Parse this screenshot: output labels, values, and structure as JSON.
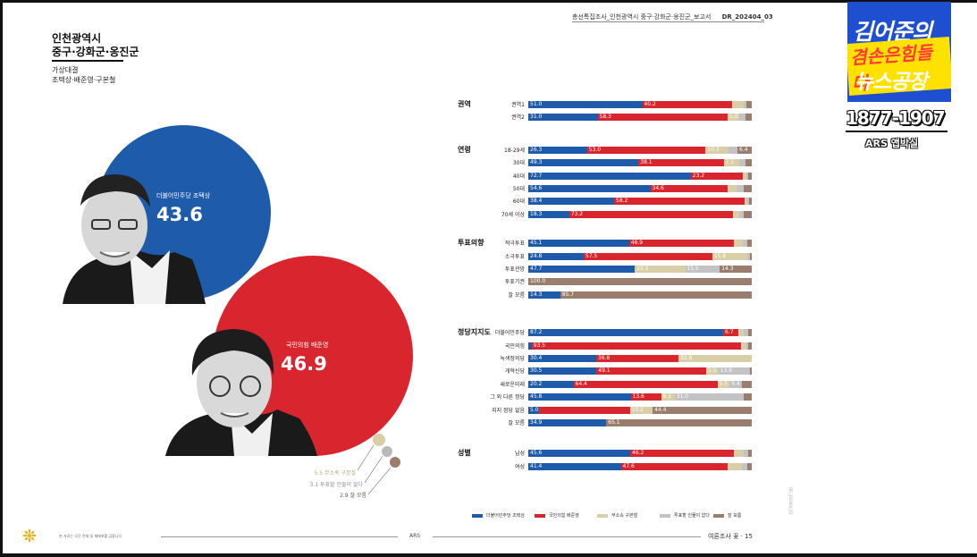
{
  "document": {
    "header": "총선특집조사_인천광역시 중구·강화군·옹진군_보고서",
    "code": "DR_202404_03",
    "footer_note": "본 자료는 무단 전재 및 재배포를 금합니다",
    "footer_center": "ARS",
    "footer_right": "여론조사 꽃 · 15"
  },
  "region": {
    "line1": "인천광역시",
    "line2": "중구·강화군·옹진군",
    "matchup_label": "가상대결",
    "matchup": "조택상·배준영·구본철"
  },
  "bubbles": {
    "candidate_a": {
      "label": "더불어민주당 조택상",
      "value": "43.6",
      "color": "#1f5bab"
    },
    "candidate_b": {
      "label": "국민의힘 배준영",
      "value": "46.9",
      "color": "#d9262e"
    },
    "minor": [
      {
        "label": "5.5 무소속 구본철",
        "color": "#d8cfa7"
      },
      {
        "label": "3.1 투표할 인물이 없다",
        "color": "#b9b9bd"
      },
      {
        "label": "2.9 잘 모름",
        "color": "#9b7d6e"
      }
    ]
  },
  "chart_data": {
    "type": "bar",
    "orientation": "horizontal-stacked-100",
    "series": [
      {
        "name": "더불어민주당 조택상",
        "color": "#1f5bab"
      },
      {
        "name": "국민의힘 배준영",
        "color": "#d9262e"
      },
      {
        "name": "무소속 구본철",
        "color": "#d8cfa7"
      },
      {
        "name": "투표할 인물이 없다",
        "color": "#c3c3c6"
      },
      {
        "name": "잘 모름",
        "color": "#9b7d6e"
      }
    ],
    "groups": [
      {
        "name": "권역",
        "rows": [
          {
            "label": "권역1",
            "values": [
              51.0,
              40.2,
              5.0,
              1.5,
              2.3
            ]
          },
          {
            "label": "권역2",
            "values": [
              31.0,
              58.3,
              5.0,
              3.0,
              2.7
            ]
          }
        ]
      },
      {
        "name": "연령",
        "rows": [
          {
            "label": "18-29세",
            "values": [
              26.3,
              53.0,
              10.3,
              4.0,
              6.4
            ]
          },
          {
            "label": "30대",
            "values": [
              49.3,
              38.1,
              7.1,
              2.5,
              3.0
            ]
          },
          {
            "label": "40대",
            "values": [
              72.7,
              23.2,
              1.5,
              1.0,
              1.6
            ]
          },
          {
            "label": "50대",
            "values": [
              54.6,
              34.6,
              4.5,
              2.5,
              3.8
            ]
          },
          {
            "label": "60대",
            "values": [
              38.4,
              58.2,
              1.0,
              1.0,
              1.4
            ]
          },
          {
            "label": "70세 이상",
            "values": [
              18.3,
              73.2,
              3.0,
              2.0,
              3.5
            ]
          }
        ]
      },
      {
        "name": "투표의향",
        "rows": [
          {
            "label": "적극투표",
            "values": [
              45.1,
              46.9,
              4.0,
              2.0,
              2.0
            ]
          },
          {
            "label": "소극투표",
            "values": [
              24.8,
              57.5,
              15.8,
              1.0,
              0.9
            ]
          },
          {
            "label": "투표관망",
            "values": [
              47.7,
              0.0,
              22.5,
              15.5,
              14.3
            ]
          },
          {
            "label": "투표기권",
            "values": [
              0,
              0,
              0,
              0,
              100.0
            ]
          },
          {
            "label": "잘 모름",
            "values": [
              14.3,
              0,
              0,
              0,
              85.7
            ]
          }
        ]
      },
      {
        "name": "정당지지도",
        "rows": [
          {
            "label": "더불어민주당",
            "values": [
              87.2,
              6.7,
              2.5,
              1.8,
              1.8
            ]
          },
          {
            "label": "국민의힘",
            "values": [
              1.5,
              93.5,
              2.5,
              1.0,
              1.5
            ]
          },
          {
            "label": "녹색정의당",
            "values": [
              30.4,
              36.8,
              32.8,
              0,
              0
            ]
          },
          {
            "label": "개혁신당",
            "values": [
              30.5,
              49.1,
              5.5,
              13.9,
              1.0
            ]
          },
          {
            "label": "새로운미래",
            "values": [
              20.2,
              64.4,
              5.5,
              5.4,
              4.5
            ]
          },
          {
            "label": "그 외 다른 정당",
            "values": [
              45.8,
              13.6,
              6.1,
              31.0,
              3.5
            ]
          },
          {
            "label": "지지 정당 없음",
            "values": [
              5.0,
              40.5,
              10.2,
              0,
              44.4
            ]
          },
          {
            "label": "잘 모름",
            "values": [
              34.9,
              0,
              0,
              0,
              65.1
            ]
          }
        ]
      },
      {
        "name": "성별",
        "rows": [
          {
            "label": "남성",
            "values": [
              45.6,
              46.2,
              4.5,
              2.0,
              1.7
            ]
          },
          {
            "label": "여성",
            "values": [
              41.4,
              47.6,
              6.5,
              2.5,
              2.0
            ]
          }
        ]
      }
    ],
    "value_labels": {
      "권역1": [
        "51.0",
        "40.2",
        "",
        "",
        ""
      ],
      "권역2": [
        "31.0",
        "58.3",
        "5.0",
        "",
        ""
      ],
      "18-29세": [
        "26.3",
        "53.0",
        "10.3",
        "",
        "6.4"
      ],
      "30대": [
        "49.3",
        "38.1",
        "7.1",
        "",
        ""
      ],
      "40대": [
        "72.7",
        "23.2",
        "",
        "",
        ""
      ],
      "50대": [
        "54.6",
        "34.6",
        "",
        "",
        ""
      ],
      "60대": [
        "38.4",
        "58.2",
        "",
        "",
        ""
      ],
      "70세 이상": [
        "18.3",
        "73.2",
        "",
        "",
        ""
      ],
      "적극투표": [
        "45.1",
        "46.9",
        "",
        "",
        ""
      ],
      "소극투표": [
        "24.8",
        "57.5",
        "15.8",
        "",
        ""
      ],
      "투표관망": [
        "47.7",
        "",
        "22.5",
        "15.5",
        "14.3"
      ],
      "투표기권": [
        "",
        "",
        "",
        "",
        "100.0"
      ],
      "잘 모름 (투표의향)": [
        "14.3",
        "",
        "",
        "",
        "85.7"
      ],
      "더불어민주당": [
        "87.2",
        "6.7",
        "",
        "",
        ""
      ],
      "국민의힘": [
        "",
        "93.5",
        "",
        "",
        ""
      ],
      "녹색정의당": [
        "30.4",
        "36.8",
        "32.8",
        "",
        ""
      ],
      "개혁신당": [
        "30.5",
        "49.1",
        "5.5",
        "13.9",
        ""
      ],
      "새로운미래": [
        "20.2",
        "64.4",
        "5.5",
        "5.4",
        ""
      ],
      "그 외 다른 정당": [
        "45.8",
        "13.6",
        "6.1",
        "31.0",
        ""
      ],
      "지지 정당 없음": [
        "5.0 40.5",
        "",
        "10.2",
        "",
        "44.4"
      ],
      "잘 모름 (정당지지도)": [
        "34.9",
        "",
        "",
        "",
        "65.1"
      ],
      "남성": [
        "45.6",
        "46.2",
        "",
        "",
        ""
      ],
      "여성": [
        "41.4",
        "47.6",
        "",
        "",
        ""
      ]
    },
    "xlim": [
      0,
      100
    ],
    "legend_position": "bottom"
  },
  "overlay": {
    "channel_line1": "김어준의",
    "channel_line2": "겸손은힘들다",
    "channel_line3": "뉴스공장",
    "years": "1877-1907",
    "label": "ARS 앱박실"
  }
}
